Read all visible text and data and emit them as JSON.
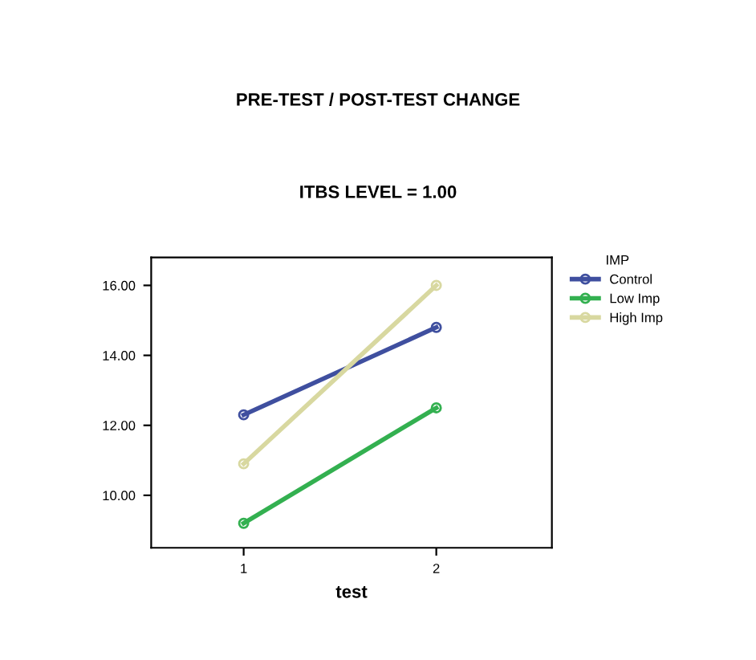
{
  "chart_data": {
    "type": "line",
    "title": "PRE-TEST / POST-TEST CHANGE",
    "subtitle": "ITBS LEVEL = 1.00",
    "xlabel": "test",
    "legend_title": "IMP",
    "x": [
      1,
      2
    ],
    "xlim": [
      0.52,
      2.6
    ],
    "xticks": [
      1,
      2
    ],
    "ylim": [
      8.5,
      16.8
    ],
    "yticks": [
      {
        "value": 10,
        "label": "10.00"
      },
      {
        "value": 12,
        "label": "12.00"
      },
      {
        "value": 14,
        "label": "14.00"
      },
      {
        "value": 16,
        "label": "16.00"
      }
    ],
    "series": [
      {
        "name": "Control",
        "color": "#3f4f9f",
        "values": [
          12.3,
          14.8
        ]
      },
      {
        "name": "Low Imp",
        "color": "#33b050",
        "values": [
          9.2,
          12.5
        ]
      },
      {
        "name": "High Imp",
        "color": "#d8d8a0",
        "values": [
          10.9,
          16.0
        ]
      }
    ],
    "marker": "circle",
    "line_style": "solid",
    "legend": "top right",
    "grid": false
  }
}
